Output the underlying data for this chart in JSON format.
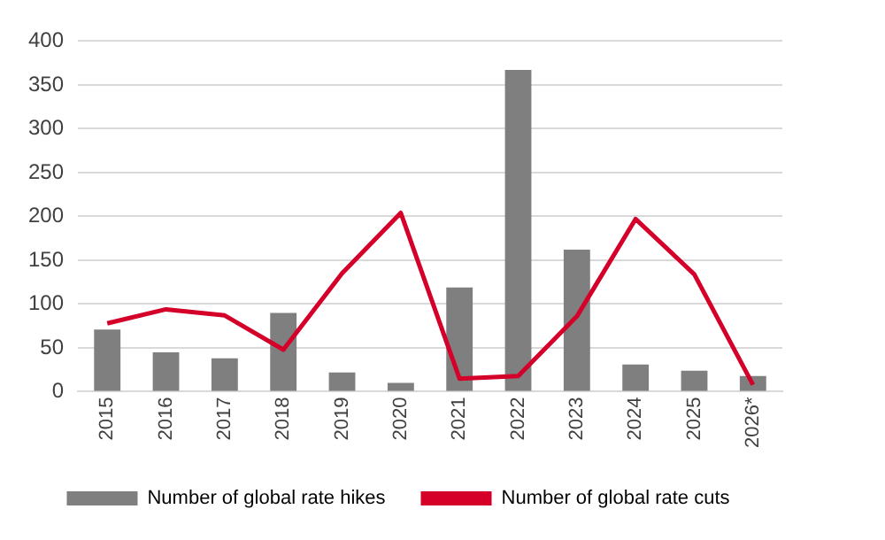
{
  "chart_data": {
    "type": "bar",
    "categories": [
      "2015",
      "2016",
      "2017",
      "2018",
      "2019",
      "2020",
      "2021",
      "2022",
      "2023",
      "2024",
      "2025",
      "2026*"
    ],
    "series": [
      {
        "name": "Number of global rate hikes",
        "color": "#7f7f7f",
        "values": [
          71,
          45,
          38,
          90,
          22,
          10,
          119,
          367,
          162,
          31,
          24,
          18
        ]
      },
      {
        "name": "Number of global rate cuts",
        "type": "line",
        "color": "#d4002a",
        "values": [
          78,
          94,
          87,
          48,
          135,
          204,
          15,
          18,
          86,
          197,
          134,
          8
        ]
      }
    ],
    "ylim": [
      0,
      400
    ],
    "yticks": [
      0,
      50,
      100,
      150,
      200,
      250,
      300,
      350,
      400
    ],
    "grid": "y",
    "legend": "bottom",
    "marker": "none"
  }
}
